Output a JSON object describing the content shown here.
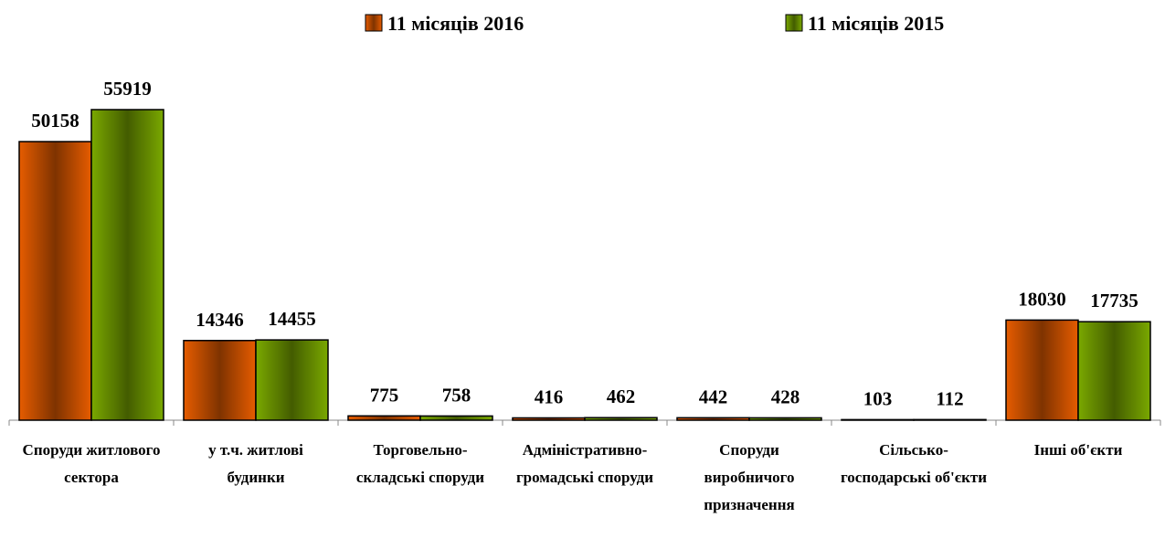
{
  "chart_data": {
    "type": "bar",
    "categories": [
      "Споруди житлового сектора",
      "у т.ч. житлові будинки",
      "Торговельно-складські споруди",
      "Адміністративно-громадські споруди",
      "Споруди виробничого призначення",
      "Сільсько-господарські об'єкти",
      "Інші об'єкти"
    ],
    "series": [
      {
        "name": "11 місяців 2016",
        "color": "#e65c00",
        "values": [
          50158,
          14346,
          775,
          416,
          442,
          103,
          18030
        ]
      },
      {
        "name": "11 місяців 2015",
        "color": "#7aa800",
        "values": [
          55919,
          14455,
          758,
          462,
          428,
          112,
          17735
        ]
      }
    ]
  }
}
